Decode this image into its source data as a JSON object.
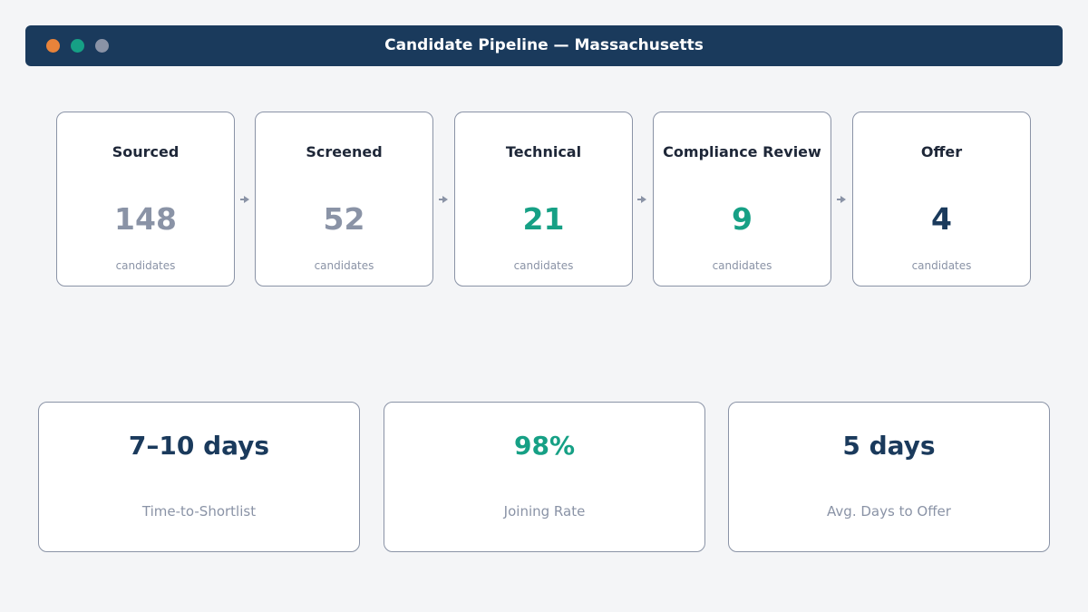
{
  "header": {
    "title": "Candidate Pipeline — Massachusetts",
    "window_dots": [
      "#e8833a",
      "#16a085",
      "#8a93a6"
    ]
  },
  "stages": [
    {
      "name": "Sourced",
      "count": "148",
      "unit": "candidates",
      "color": "#8a93a6"
    },
    {
      "name": "Screened",
      "count": "52",
      "unit": "candidates",
      "color": "#8a93a6"
    },
    {
      "name": "Technical",
      "count": "21",
      "unit": "candidates",
      "color": "#16a085"
    },
    {
      "name": "Compliance Review",
      "count": "9",
      "unit": "candidates",
      "color": "#16a085"
    },
    {
      "name": "Offer",
      "count": "4",
      "unit": "candidates",
      "color": "#1a3a5c"
    }
  ],
  "flow_arrow_icon": "arrow-right-icon",
  "kpis": [
    {
      "value": "7–10 days",
      "label": "Time-to-Shortlist",
      "color": "#1a3a5c"
    },
    {
      "value": "98%",
      "label": "Joining Rate",
      "color": "#16a085"
    },
    {
      "value": "5 days",
      "label": "Avg. Days to Offer",
      "color": "#1a3a5c"
    }
  ]
}
